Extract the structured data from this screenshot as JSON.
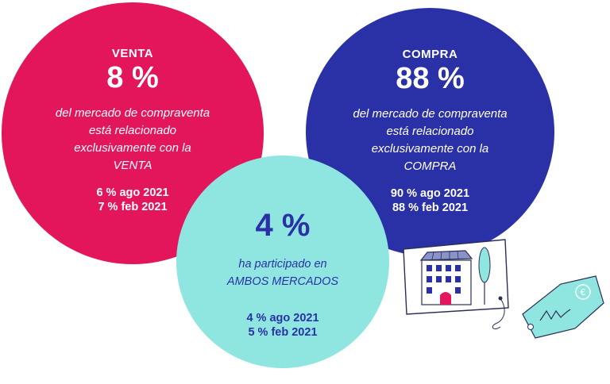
{
  "venta": {
    "label": "VENTA",
    "percent": "8 %",
    "description": [
      "del mercado de compraventa",
      "está relacionado",
      "exclusivamente con la",
      "VENTA"
    ],
    "history": [
      "6 % ago 2021",
      "7 % feb 2021"
    ],
    "color": "#e3165b"
  },
  "compra": {
    "label": "COMPRA",
    "percent": "88 %",
    "description": [
      "del mercado de compraventa",
      "está relacionado",
      "exclusivamente con la",
      "COMPRA"
    ],
    "history": [
      "90 % ago 2021",
      "88 % feb 2021"
    ],
    "color": "#2a31a6"
  },
  "ambos": {
    "percent": "4 %",
    "description": [
      "ha participado en",
      "AMBOS MERCADOS"
    ],
    "history": [
      "4 % ago 2021",
      "5 % feb 2021"
    ],
    "color": "#8fe6e1"
  },
  "illustration": {
    "icons": [
      "building-card-icon",
      "price-tag-icon"
    ],
    "tag_symbol": "€"
  }
}
